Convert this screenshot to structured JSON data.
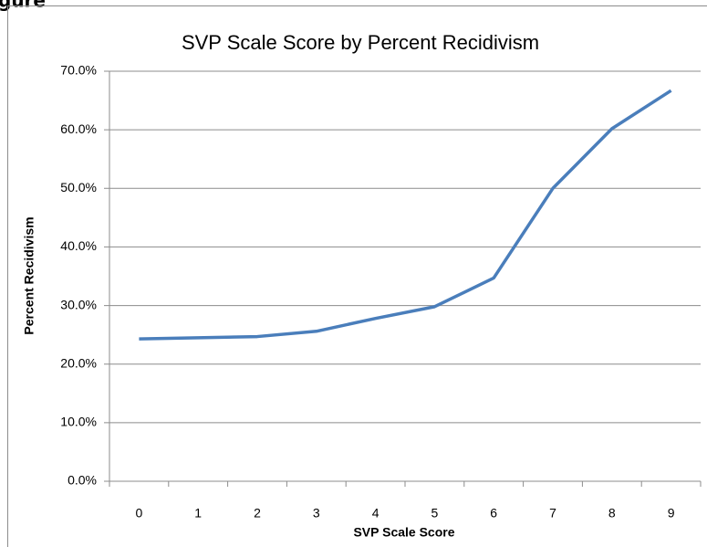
{
  "caption": "gure",
  "chart_data": {
    "type": "line",
    "title": "SVP Scale Score by Percent Recidivism",
    "x_label": "SVP Scale Score",
    "y_label": "Percent Recidivism",
    "categories": [
      "0",
      "1",
      "2",
      "3",
      "4",
      "5",
      "6",
      "7",
      "8",
      "9"
    ],
    "series": [
      {
        "name": "Percent Recidivism",
        "color": "#4a7ebb",
        "values": [
          24.3,
          24.5,
          24.7,
          25.6,
          27.8,
          29.8,
          34.7,
          50.0,
          60.2,
          66.7
        ]
      }
    ],
    "ylim": [
      0,
      70
    ],
    "yticks": [
      {
        "value": 0,
        "label": "0.0%"
      },
      {
        "value": 10,
        "label": "10.0%"
      },
      {
        "value": 20,
        "label": "20.0%"
      },
      {
        "value": 30,
        "label": "30.0%"
      },
      {
        "value": 40,
        "label": "40.0%"
      },
      {
        "value": 50,
        "label": "50.0%"
      },
      {
        "value": 60,
        "label": "60.0%"
      },
      {
        "value": 70,
        "label": "70.0%"
      }
    ],
    "grid": true
  }
}
